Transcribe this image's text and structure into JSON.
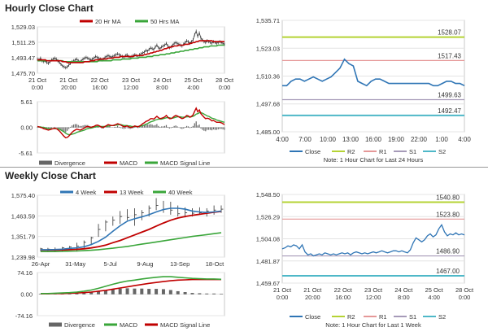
{
  "sections": {
    "hourly_title": "Hourly Close Chart",
    "weekly_title": "Weekly Close Chart"
  },
  "chart_data": [
    {
      "id": "hourly_price",
      "type": "line",
      "legend": [
        "20 Hr MA",
        "50 Hrs MA"
      ],
      "y_ticks": [
        "1,529.03",
        "1,511.25",
        "1,493.47",
        "1,475.70"
      ],
      "y_tick_values": [
        1529.03,
        1511.25,
        1493.47,
        1475.7
      ],
      "ylim": [
        1475.7,
        1529.03
      ],
      "x_ticks": [
        [
          "21 Oct",
          "0:00"
        ],
        [
          "21 Oct",
          "20:00"
        ],
        [
          "22 Oct",
          "16:00"
        ],
        [
          "23 Oct",
          "12:00"
        ],
        [
          "24 Oct",
          "8:00"
        ],
        [
          "25 Oct",
          "4:00"
        ],
        [
          "28 Oct",
          "0:00"
        ]
      ],
      "n_points": 120,
      "close": [
        1492,
        1491,
        1493,
        1490,
        1489,
        1490,
        1488,
        1487,
        1489,
        1491,
        1492,
        1493,
        1492,
        1490,
        1488,
        1486,
        1484,
        1483,
        1482,
        1483,
        1485,
        1487,
        1489,
        1490,
        1491,
        1492,
        1490,
        1489,
        1490,
        1492,
        1493,
        1494,
        1493,
        1492,
        1491,
        1492,
        1493,
        1495,
        1494,
        1493,
        1492,
        1491,
        1492,
        1494,
        1495,
        1496,
        1495,
        1494,
        1495,
        1496,
        1497,
        1498,
        1497,
        1496,
        1495,
        1494,
        1496,
        1497,
        1495,
        1494,
        1495,
        1496,
        1497,
        1496,
        1495,
        1497,
        1498,
        1499,
        1500,
        1502,
        1501,
        1503,
        1505,
        1504,
        1503,
        1506,
        1508,
        1505,
        1504,
        1506,
        1507,
        1508,
        1510,
        1507,
        1505,
        1506,
        1508,
        1510,
        1511,
        1510,
        1509,
        1508,
        1507,
        1509,
        1511,
        1513,
        1512,
        1510,
        1512,
        1514,
        1520,
        1524,
        1518,
        1522,
        1516,
        1514,
        1512,
        1511,
        1513,
        1512,
        1511,
        1510,
        1512,
        1511,
        1510,
        1511,
        1512,
        1511,
        1510,
        1509
      ],
      "ma20": [
        1491,
        1491,
        1491,
        1491,
        1491,
        1491,
        1490,
        1490,
        1490,
        1490,
        1490,
        1490,
        1490,
        1490,
        1490,
        1490,
        1489,
        1489,
        1489,
        1488,
        1488,
        1488,
        1488,
        1488,
        1488,
        1488,
        1488,
        1488,
        1488,
        1488,
        1489,
        1489,
        1489,
        1489,
        1490,
        1490,
        1490,
        1491,
        1491,
        1491,
        1492,
        1492,
        1492,
        1492,
        1492,
        1493,
        1493,
        1493,
        1493,
        1494,
        1494,
        1494,
        1494,
        1495,
        1495,
        1495,
        1495,
        1495,
        1495,
        1495,
        1495,
        1495,
        1496,
        1496,
        1496,
        1496,
        1496,
        1496,
        1497,
        1497,
        1498,
        1498,
        1499,
        1499,
        1500,
        1500,
        1501,
        1501,
        1502,
        1502,
        1503,
        1504,
        1504,
        1505,
        1505,
        1506,
        1506,
        1507,
        1507,
        1507,
        1508,
        1508,
        1508,
        1508,
        1509,
        1509,
        1509,
        1510,
        1510,
        1511,
        1511,
        1512,
        1512,
        1513,
        1513,
        1513,
        1513,
        1513,
        1513,
        1513,
        1513,
        1513,
        1512,
        1512,
        1512,
        1512,
        1512,
        1512,
        1512,
        1512
      ],
      "ma50": [
        1490,
        1490,
        1490,
        1490,
        1490,
        1490,
        1490,
        1490,
        1490,
        1490,
        1490,
        1490,
        1490,
        1490,
        1490,
        1490,
        1490,
        1489,
        1489,
        1489,
        1489,
        1489,
        1489,
        1489,
        1489,
        1489,
        1489,
        1489,
        1489,
        1489,
        1489,
        1489,
        1489,
        1489,
        1489,
        1489,
        1489,
        1489,
        1489,
        1490,
        1490,
        1490,
        1490,
        1490,
        1490,
        1490,
        1490,
        1490,
        1491,
        1491,
        1491,
        1491,
        1491,
        1491,
        1492,
        1492,
        1492,
        1492,
        1492,
        1492,
        1493,
        1493,
        1493,
        1493,
        1493,
        1494,
        1494,
        1494,
        1494,
        1494,
        1495,
        1495,
        1495,
        1495,
        1496,
        1496,
        1496,
        1496,
        1497,
        1497,
        1497,
        1497,
        1498,
        1498,
        1498,
        1499,
        1499,
        1499,
        1500,
        1500,
        1500,
        1501,
        1501,
        1501,
        1502,
        1502,
        1502,
        1503,
        1503,
        1503,
        1504,
        1504,
        1504,
        1505,
        1505,
        1505,
        1506,
        1506,
        1506,
        1506,
        1507,
        1507,
        1507,
        1507,
        1507,
        1508,
        1508,
        1508,
        1508,
        1508
      ]
    },
    {
      "id": "hourly_macd",
      "type": "bar",
      "legend": [
        "Divergence",
        "MACD",
        "MACD Signal Line"
      ],
      "y_ticks": [
        "5.61",
        "0.00",
        "-5.61"
      ],
      "y_tick_values": [
        5.61,
        0,
        -5.61
      ],
      "ylim": [
        -5.61,
        5.61
      ],
      "n_points": 120,
      "macd": [
        0.2,
        0.1,
        0,
        -0.1,
        -0.3,
        -0.4,
        -0.5,
        -0.6,
        -0.5,
        -0.4,
        -0.3,
        -0.2,
        -0.3,
        -0.5,
        -0.8,
        -1.2,
        -1.6,
        -2,
        -2.3,
        -2.2,
        -1.9,
        -1.5,
        -1.1,
        -0.8,
        -0.6,
        -0.4,
        -0.5,
        -0.6,
        -0.5,
        -0.3,
        -0.1,
        0.1,
        0.2,
        0.1,
        0,
        0.1,
        0.2,
        0.4,
        0.5,
        0.4,
        0.2,
        0,
        0,
        0.2,
        0.4,
        0.6,
        0.5,
        0.4,
        0.4,
        0.5,
        0.6,
        0.8,
        0.7,
        0.5,
        0.3,
        0.1,
        0.2,
        0.3,
        0.1,
        0,
        0,
        0.1,
        0.3,
        0.2,
        0.1,
        0.3,
        0.5,
        0.8,
        1,
        1.3,
        1.4,
        1.6,
        1.9,
        1.9,
        1.8,
        2.1,
        2.4,
        2.1,
        1.9,
        2,
        2.1,
        2.3,
        2.6,
        2.2,
        1.9,
        1.9,
        2.1,
        2.4,
        2.6,
        2.5,
        2.3,
        2.1,
        1.9,
        2,
        2.3,
        2.6,
        2.5,
        2.2,
        2.4,
        2.7,
        3.5,
        4.2,
        3.4,
        3.8,
        3,
        2.6,
        2.2,
        1.9,
        2,
        1.9,
        1.7,
        1.4,
        1.5,
        1.3,
        1.1,
        1.1,
        1.1,
        1,
        0.8,
        0.6
      ],
      "signal": [
        0.1,
        0.1,
        0.1,
        0,
        0,
        -0.1,
        -0.2,
        -0.3,
        -0.3,
        -0.3,
        -0.3,
        -0.3,
        -0.3,
        -0.3,
        -0.4,
        -0.6,
        -0.8,
        -1,
        -1.3,
        -1.5,
        -1.6,
        -1.6,
        -1.5,
        -1.4,
        -1.3,
        -1.1,
        -1,
        -0.9,
        -0.8,
        -0.7,
        -0.6,
        -0.4,
        -0.3,
        -0.2,
        -0.2,
        -0.1,
        0,
        0.1,
        0.2,
        0.2,
        0.2,
        0.2,
        0.2,
        0.2,
        0.2,
        0.3,
        0.3,
        0.4,
        0.4,
        0.4,
        0.5,
        0.5,
        0.6,
        0.6,
        0.5,
        0.4,
        0.4,
        0.4,
        0.3,
        0.3,
        0.2,
        0.2,
        0.2,
        0.2,
        0.2,
        0.2,
        0.3,
        0.4,
        0.5,
        0.7,
        0.8,
        1,
        1.2,
        1.3,
        1.4,
        1.6,
        1.7,
        1.8,
        1.8,
        1.8,
        1.9,
        2,
        2.1,
        2.1,
        2.1,
        2,
        2,
        2.1,
        2.2,
        2.3,
        2.3,
        2.3,
        2.2,
        2.2,
        2.2,
        2.3,
        2.3,
        2.3,
        2.3,
        2.4,
        2.6,
        2.9,
        3,
        3.2,
        3.2,
        3.1,
        2.9,
        2.7,
        2.5,
        2.4,
        2.2,
        2,
        1.9,
        1.8,
        1.6,
        1.5,
        1.4,
        1.3,
        1.2,
        1.1
      ]
    },
    {
      "id": "hourly_24h",
      "type": "line",
      "legend": [
        "Close",
        "R2",
        "R1",
        "S1",
        "S2"
      ],
      "note": "Note: 1 Hour Chart for Last 24 Hours",
      "y_ticks": [
        "1,535.71",
        "1,523.03",
        "1,510.36",
        "1,497.68",
        "1,485.00"
      ],
      "y_tick_values": [
        1535.71,
        1523.03,
        1510.36,
        1497.68,
        1485.0
      ],
      "ylim": [
        1485.0,
        1535.71
      ],
      "x_ticks": [
        "4:00",
        "7:00",
        "10:00",
        "13:00",
        "16:00",
        "19:00",
        "22:00",
        "1:00",
        "4:00"
      ],
      "levels": {
        "R2": 1528.07,
        "R1": 1517.43,
        "S1": 1499.63,
        "S2": 1492.47
      },
      "level_labels": {
        "R2": "1528.07",
        "R1": "1517.43",
        "S1": "1499.63",
        "S2": "1492.47"
      },
      "close": [
        1506,
        1506,
        1508,
        1509,
        1509,
        1508,
        1509,
        1510,
        1509,
        1508,
        1509,
        1510,
        1512,
        1514,
        1518,
        1516,
        1515,
        1508,
        1507,
        1506,
        1508,
        1509,
        1509,
        1508,
        1507,
        1507,
        1507,
        1507,
        1507,
        1507,
        1507,
        1507,
        1507,
        1507,
        1506,
        1506,
        1507,
        1508,
        1508,
        1507,
        1507,
        1506
      ]
    },
    {
      "id": "weekly_price",
      "type": "line",
      "legend": [
        "4 Week",
        "13 Week",
        "40 Week"
      ],
      "y_ticks": [
        "1,575.40",
        "1,463.59",
        "1,351.79",
        "1,239.98"
      ],
      "y_tick_values": [
        1575.4,
        1463.59,
        1351.79,
        1239.98
      ],
      "ylim": [
        1239.98,
        1575.4
      ],
      "x_ticks": [
        "26-Apr",
        "31-May",
        "5-Jul",
        "9-Aug",
        "13-Sep",
        "18-Oct"
      ],
      "n_points": 26,
      "hi": [
        1290,
        1290,
        1292,
        1295,
        1300,
        1318,
        1330,
        1350,
        1420,
        1440,
        1460,
        1490,
        1500,
        1505,
        1495,
        1520,
        1560,
        1545,
        1540,
        1520,
        1510,
        1505,
        1510,
        1505,
        1520,
        1520
      ],
      "lo": [
        1270,
        1270,
        1268,
        1272,
        1285,
        1270,
        1285,
        1305,
        1350,
        1380,
        1410,
        1420,
        1440,
        1410,
        1440,
        1460,
        1495,
        1480,
        1470,
        1460,
        1455,
        1460,
        1470,
        1460,
        1470,
        1480
      ],
      "close": [
        1285,
        1283,
        1280,
        1290,
        1295,
        1300,
        1320,
        1345,
        1390,
        1430,
        1440,
        1460,
        1455,
        1470,
        1480,
        1505,
        1520,
        1500,
        1495,
        1475,
        1480,
        1478,
        1480,
        1490,
        1495,
        1500
      ],
      "w4": [
        1280,
        1280,
        1281,
        1283,
        1287,
        1290,
        1296,
        1308,
        1325,
        1348,
        1380,
        1410,
        1435,
        1448,
        1458,
        1470,
        1485,
        1498,
        1505,
        1505,
        1500,
        1490,
        1485,
        1482,
        1485,
        1490
      ],
      "w13": [
        1278,
        1278,
        1278,
        1279,
        1280,
        1282,
        1285,
        1290,
        1296,
        1305,
        1318,
        1330,
        1345,
        1360,
        1375,
        1390,
        1408,
        1425,
        1440,
        1452,
        1460,
        1467,
        1472,
        1478,
        1483,
        1488
      ],
      "w40": [
        1270,
        1270,
        1270,
        1271,
        1272,
        1273,
        1275,
        1277,
        1280,
        1284,
        1288,
        1293,
        1298,
        1304,
        1310,
        1316,
        1322,
        1328,
        1334,
        1340,
        1346,
        1352,
        1357,
        1362,
        1367,
        1372
      ]
    },
    {
      "id": "weekly_macd",
      "type": "bar",
      "legend": [
        "Divergence",
        "MACD",
        "MACD Signal Line"
      ],
      "y_ticks": [
        "74.16",
        "0.00",
        "-74.16"
      ],
      "y_tick_values": [
        74.16,
        0,
        -74.16
      ],
      "ylim": [
        -74.16,
        74.16
      ],
      "n_points": 26,
      "macd": [
        2,
        2,
        3,
        4,
        5,
        7,
        10,
        14,
        20,
        27,
        34,
        40,
        45,
        48,
        52,
        55,
        58,
        60,
        60,
        58,
        56,
        54,
        53,
        52,
        52,
        51
      ],
      "signal": [
        1,
        1,
        2,
        2,
        3,
        4,
        5,
        7,
        10,
        13,
        17,
        21,
        25,
        29,
        33,
        37,
        40,
        43,
        46,
        48,
        49,
        50,
        50,
        50,
        50,
        50
      ],
      "divergence": [
        1,
        1,
        1,
        2,
        2,
        3,
        5,
        7,
        10,
        14,
        17,
        19,
        20,
        19,
        19,
        18,
        18,
        17,
        14,
        10,
        7,
        4,
        3,
        2,
        2,
        1
      ]
    },
    {
      "id": "weekly_1w",
      "type": "line",
      "legend": [
        "Close",
        "R2",
        "R1",
        "S1",
        "S2"
      ],
      "note": "Note: 1 Hour Chart for Last 1 Week",
      "y_ticks": [
        "1,548.50",
        "1,526.29",
        "1,504.08",
        "1,481.87",
        "1,459.67"
      ],
      "y_tick_values": [
        1548.5,
        1526.29,
        1504.08,
        1481.87,
        1459.67
      ],
      "ylim": [
        1459.67,
        1548.5
      ],
      "x_ticks": [
        [
          "21 Oct",
          "0:00"
        ],
        [
          "21 Oct",
          "20:00"
        ],
        [
          "22 Oct",
          "16:00"
        ],
        [
          "23 Oct",
          "12:00"
        ],
        [
          "24 Oct",
          "8:00"
        ],
        [
          "25 Oct",
          "4:00"
        ],
        [
          "28 Oct",
          "0:00"
        ]
      ],
      "levels": {
        "R2": 1540.8,
        "R1": 1523.8,
        "S1": 1486.9,
        "S2": 1467.0
      },
      "level_labels": {
        "R2": "1540.80",
        "R1": "1523.80",
        "S1": "1486.90",
        "S2": "1467.00"
      },
      "close": [
        1494,
        1495,
        1497,
        1496,
        1498,
        1497,
        1494,
        1498,
        1491,
        1488,
        1489,
        1487,
        1488,
        1489,
        1488,
        1490,
        1489,
        1488,
        1489,
        1488,
        1489,
        1490,
        1489,
        1490,
        1488,
        1490,
        1491,
        1490,
        1489,
        1490,
        1489,
        1490,
        1491,
        1490,
        1491,
        1492,
        1491,
        1490,
        1491,
        1492,
        1492,
        1491,
        1492,
        1491,
        1490,
        1493,
        1500,
        1505,
        1503,
        1501,
        1503,
        1507,
        1509,
        1506,
        1508,
        1514,
        1518,
        1511,
        1507,
        1509,
        1508,
        1510,
        1508,
        1509,
        1508
      ]
    }
  ]
}
